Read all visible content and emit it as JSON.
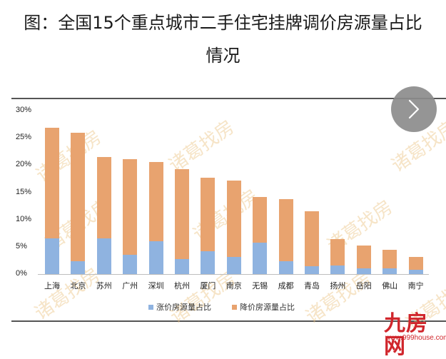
{
  "title": {
    "line1": "图：全国15个重点城市二手住宅挂牌调价房源量占比",
    "line2": "情况"
  },
  "watermark": "诸葛找房",
  "logo": {
    "text": "九房网",
    "url": "www.999house.com"
  },
  "nav": {
    "next_icon": "chevron-right-icon"
  },
  "colors": {
    "up": "#8fb3e0",
    "down": "#e8a36f"
  },
  "chart_data": {
    "type": "bar",
    "stacked": true,
    "title": "全国15个重点城市二手住宅挂牌调价房源量占比情况",
    "xlabel": "",
    "ylabel": "",
    "ylim": [
      0,
      30
    ],
    "yticks": [
      "0%",
      "5%",
      "10%",
      "15%",
      "20%",
      "25%",
      "30%"
    ],
    "categories": [
      "上海",
      "北京",
      "苏州",
      "广州",
      "深圳",
      "杭州",
      "厦门",
      "南京",
      "无锡",
      "成都",
      "青岛",
      "扬州",
      "岳阳",
      "佛山",
      "南宁"
    ],
    "series": [
      {
        "name": "涨价房源量占比",
        "color": "#8fb3e0",
        "values": [
          6.6,
          2.4,
          6.5,
          3.5,
          6.0,
          2.8,
          4.2,
          3.2,
          5.7,
          2.3,
          1.4,
          1.6,
          1.0,
          1.1,
          0.8
        ]
      },
      {
        "name": "降价房源量占比",
        "color": "#e8a36f",
        "values": [
          20.2,
          23.6,
          15.0,
          17.6,
          14.6,
          16.4,
          13.5,
          13.9,
          8.4,
          11.5,
          10.1,
          4.8,
          4.3,
          3.4,
          2.4
        ]
      }
    ],
    "totals": [
      26.8,
      26.0,
      21.5,
      21.1,
      20.6,
      19.2,
      17.7,
      17.1,
      14.1,
      13.8,
      11.5,
      6.4,
      5.3,
      4.5,
      3.2
    ],
    "grid": false,
    "legend_position": "bottom"
  }
}
